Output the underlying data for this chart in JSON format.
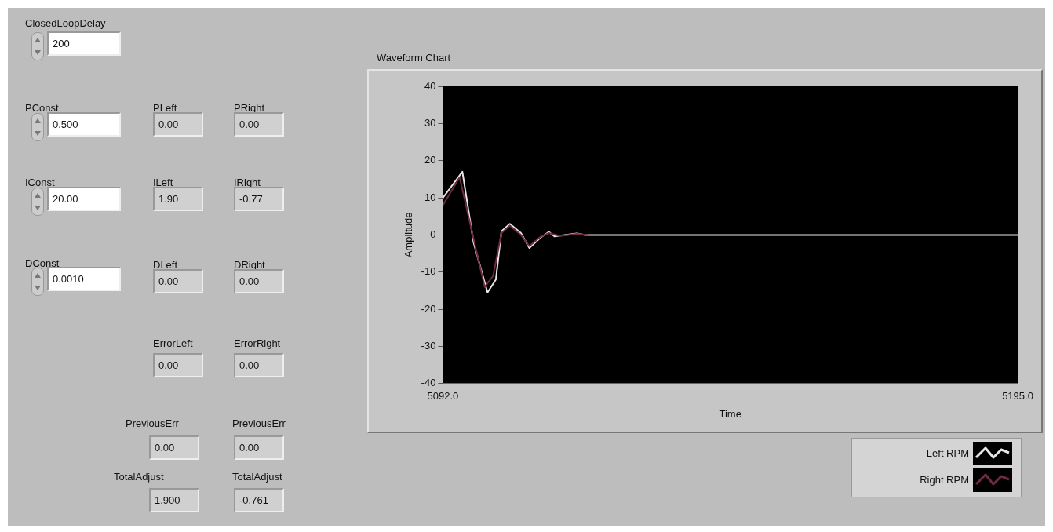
{
  "chart_data": [
    {
      "type": "other",
      "annotations": [
        "ClosedLoopDelay",
        "200",
        "PConst",
        "0.500",
        "PLeft",
        "0.00",
        "PRight",
        "0.00",
        "IConst",
        "20.00",
        "ILeft",
        "1.90",
        "IRight",
        "-0.77",
        "DConst",
        "0.0010",
        "DLeft",
        "0.00",
        "DRight",
        "0.00",
        "ErrorLeft",
        "0.00",
        "ErrorRight",
        "0.00",
        "PreviousErr",
        "0.00",
        "PreviousErr",
        "0.00",
        "TotalAdjust",
        "1.900",
        "TotalAdjust",
        "-0.761"
      ]
    },
    {
      "type": "line",
      "title": "Waveform Chart",
      "xlabel": "Time",
      "ylabel": "Amplitude",
      "xlim": [
        5092,
        5195
      ],
      "xticks": [
        {
          "value": 5092,
          "label": "5092.0"
        },
        {
          "value": 5195,
          "label": "5195.0"
        }
      ],
      "ylim": [
        -40,
        40
      ],
      "yticks": [
        -40,
        -30,
        -20,
        -10,
        0,
        10,
        20,
        30,
        40
      ],
      "grid": false,
      "legend": "bottom right",
      "marker": "none",
      "line_style": "solid",
      "series": [
        {
          "name": "Right RPM",
          "color": "#6e2c3c",
          "x": [
            5092,
            5095,
            5097.5,
            5099.5,
            5101,
            5102.5,
            5104,
            5106,
            5107.5,
            5109.5,
            5111,
            5113,
            5116,
            5118
          ],
          "values": [
            8,
            15.5,
            -1,
            -14,
            -11,
            0.5,
            2.5,
            0,
            -3,
            -0.5,
            0.5,
            -0.3,
            0.3,
            0
          ]
        },
        {
          "name": "Left RPM",
          "color": "#e6e6e6",
          "x": [
            5092,
            5095.5,
            5097.5,
            5100,
            5101.5,
            5102.5,
            5104,
            5106,
            5107.5,
            5109.5,
            5111,
            5112,
            5116,
            5117.5,
            5195
          ],
          "values": [
            10,
            17,
            -2,
            -15.5,
            -12,
            1,
            3,
            0.5,
            -3.5,
            -0.7,
            0.8,
            -0.4,
            0.4,
            0,
            0
          ]
        }
      ]
    }
  ]
}
